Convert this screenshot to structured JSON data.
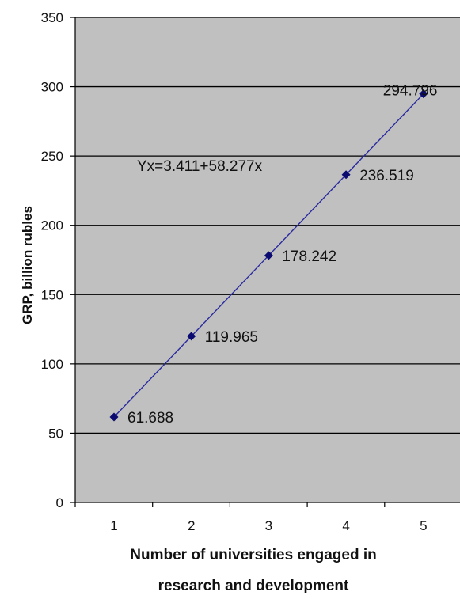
{
  "chart_data": {
    "type": "line",
    "x": [
      1,
      2,
      3,
      4,
      5
    ],
    "values": [
      61.688,
      119.965,
      178.242,
      236.519,
      294.796
    ],
    "data_labels": [
      "61.688",
      "119.965",
      "178.242",
      "236.519",
      "294.796"
    ],
    "equation": "Yx=3.411+58.277x",
    "xlabel_lines": [
      "Number of universities engaged in",
      "research and development"
    ],
    "ylabel": "GRP, billion rubles",
    "x_ticks": [
      "1",
      "2",
      "3",
      "4",
      "5"
    ],
    "y_ticks": [
      "0",
      "50",
      "100",
      "150",
      "200",
      "250",
      "300",
      "350"
    ],
    "ylim": [
      0,
      350
    ],
    "grid": "horizontal",
    "legend": "none",
    "colors": {
      "plot_bg": "#c0c0c0",
      "line": "#2a2aa0",
      "marker": "#0a0a70",
      "grid": "#000000"
    }
  }
}
